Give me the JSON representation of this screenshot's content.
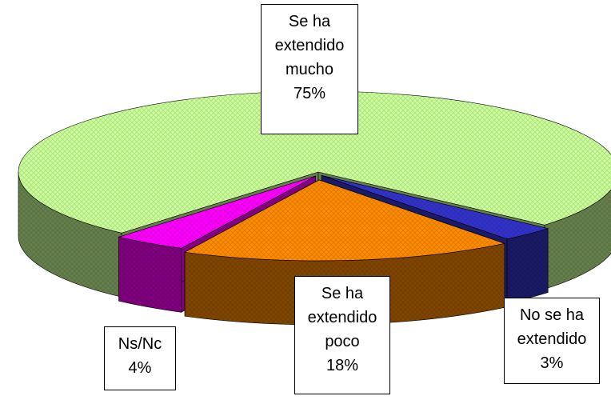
{
  "chart_data": {
    "type": "pie",
    "categories": [
      "Se ha extendido mucho",
      "Se ha extendido poco",
      "No se ha extendido",
      "Ns/Nc"
    ],
    "values": [
      75,
      18,
      3,
      4
    ],
    "value_labels": [
      "75%",
      "18%",
      "3%",
      "4%"
    ],
    "colors": [
      "#ccff99",
      "#ff8c00",
      "#3333cc",
      "#ff00ff"
    ]
  }
}
